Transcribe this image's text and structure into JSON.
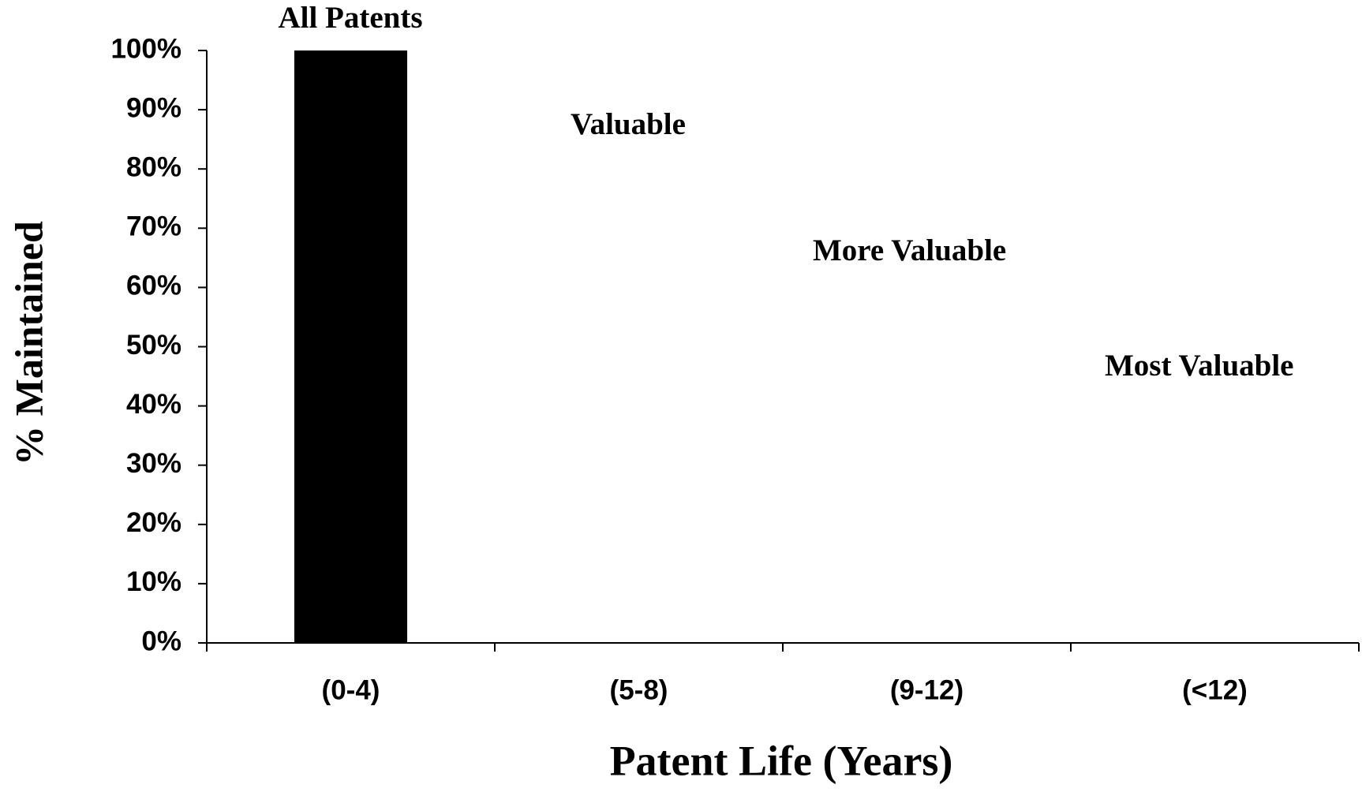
{
  "chart_data": {
    "type": "bar",
    "x_label": "Patent Life (Years)",
    "y_label": "% Maintained",
    "categories": [
      "(0-4)",
      "(5-8)",
      "(9-12)",
      "(<12)"
    ],
    "values": [
      100,
      null,
      null,
      null
    ],
    "color": "#000000",
    "annotations": [
      "All Patents",
      "Valuable",
      "More Valuable",
      "Most Valuable"
    ],
    "ylim": [
      0,
      100
    ],
    "yticks": [
      {
        "value": 0,
        "label": "0%"
      },
      {
        "value": 10,
        "label": "10%"
      },
      {
        "value": 20,
        "label": "20%"
      },
      {
        "value": 30,
        "label": "30%"
      },
      {
        "value": 40,
        "label": "40%"
      },
      {
        "value": 50,
        "label": "50%"
      },
      {
        "value": 60,
        "label": "60%"
      },
      {
        "value": 70,
        "label": "70%"
      },
      {
        "value": 80,
        "label": "80%"
      },
      {
        "value": 90,
        "label": "90%"
      },
      {
        "value": 100,
        "label": "100%"
      }
    ],
    "grid": false
  }
}
